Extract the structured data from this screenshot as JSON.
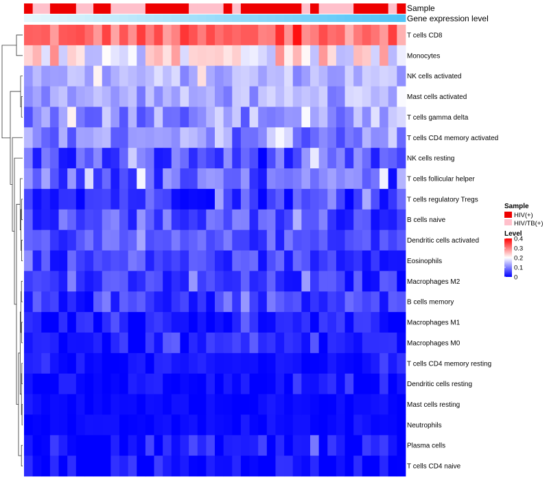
{
  "chart_data": {
    "type": "heatmap",
    "title": "",
    "rows": [
      "T cells CD8",
      "Monocytes",
      "NK cells activated",
      "Mast cells activated",
      "T cells gamma delta",
      "T cells CD4 memory activated",
      "NK cells resting",
      "T cells follicular helper",
      "T cells regulatory  Tregs",
      "B cells naive",
      "Dendritic cells activated",
      "Eosinophils",
      "Macrophages M2",
      "B cells memory",
      "Macrophages M1",
      "Macrophages M0",
      "T cells CD4 memory resting",
      "Dendritic cells resting",
      "Mast cells resting",
      "Neutrophils",
      "Plasma cells",
      "T cells CD4 naive"
    ],
    "n_samples": 44,
    "annotations": {
      "sample_label": "Sample",
      "gene_label": "Gene expression level",
      "sample_groups": [
        0,
        1,
        1,
        0,
        0,
        0,
        1,
        1,
        0,
        0,
        1,
        1,
        1,
        1,
        0,
        0,
        0,
        0,
        0,
        1,
        1,
        1,
        1,
        0,
        1,
        0,
        0,
        0,
        0,
        0,
        0,
        0,
        1,
        0,
        1,
        1,
        1,
        1,
        0,
        0,
        0,
        0,
        1,
        0
      ],
      "gene_gradient": [
        "#e6f7fd",
        "#4fc3f7"
      ]
    },
    "legend": {
      "sample": {
        "title": "Sample",
        "items": [
          {
            "label": "HIV(+)",
            "color": "#ee0000"
          },
          {
            "label": "HIV/TB(+)",
            "color": "#ffc0cb"
          }
        ]
      },
      "level": {
        "title": "Level",
        "ticks": [
          "0.4",
          "0.3",
          "0.2",
          "0.1",
          "0"
        ],
        "tick_values": [
          0.4,
          0.3,
          0.2,
          0.1,
          0
        ],
        "range": [
          0,
          0.4
        ],
        "colors": [
          "#0000ff",
          "#ffffff",
          "#ff0000"
        ]
      }
    },
    "row_profiles": [
      {
        "base": 0.31,
        "amp": 0.05
      },
      {
        "base": 0.21,
        "amp": 0.08
      },
      {
        "base": 0.14,
        "amp": 0.04
      },
      {
        "base": 0.13,
        "amp": 0.04
      },
      {
        "base": 0.12,
        "amp": 0.06
      },
      {
        "base": 0.1,
        "amp": 0.05
      },
      {
        "base": 0.06,
        "amp": 0.06
      },
      {
        "base": 0.07,
        "amp": 0.06
      },
      {
        "base": 0.05,
        "amp": 0.05
      },
      {
        "base": 0.06,
        "amp": 0.05
      },
      {
        "base": 0.06,
        "amp": 0.04
      },
      {
        "base": 0.05,
        "amp": 0.04
      },
      {
        "base": 0.04,
        "amp": 0.04
      },
      {
        "base": 0.04,
        "amp": 0.04
      },
      {
        "base": 0.02,
        "amp": 0.03
      },
      {
        "base": 0.02,
        "amp": 0.03
      },
      {
        "base": 0.01,
        "amp": 0.02
      },
      {
        "base": 0.01,
        "amp": 0.02
      },
      {
        "base": 0.005,
        "amp": 0.01
      },
      {
        "base": 0.005,
        "amp": 0.01
      },
      {
        "base": 0.02,
        "amp": 0.04
      },
      {
        "base": 0.01,
        "amp": 0.03
      }
    ],
    "dendrogram": [
      {
        "a": 0,
        "b": 1,
        "h": 0.3
      },
      {
        "a": 3,
        "b": 4,
        "h": 0.06
      },
      {
        "a": 2,
        "b": "m1",
        "h": 0.1
      },
      {
        "a": 8,
        "b": 9,
        "h": 0.05
      },
      {
        "a": 10,
        "b": 11,
        "h": 0.05
      },
      {
        "a": "m3",
        "b": "m4",
        "h": 0.08
      },
      {
        "a": 7,
        "b": "m5",
        "h": 0.12
      },
      {
        "a": 12,
        "b": 13,
        "h": 0.06
      },
      {
        "a": 14,
        "b": 15,
        "h": 0.05
      },
      {
        "a": "m7",
        "b": "m8",
        "h": 0.08
      },
      {
        "a": 16,
        "b": 17,
        "h": 0.04
      },
      {
        "a": 18,
        "b": 19,
        "h": 0.03
      },
      {
        "a": "m10",
        "b": "m11",
        "h": 0.06
      },
      {
        "a": "m9",
        "b": "m12",
        "h": 0.12
      },
      {
        "a": 20,
        "b": 21,
        "h": 0.06
      },
      {
        "a": "m13",
        "b": "m14",
        "h": 0.2
      },
      {
        "a": "m6",
        "b": "m15",
        "h": 0.3
      },
      {
        "a": 6,
        "b": "m16",
        "h": 0.4
      },
      {
        "a": 5,
        "b": "m17",
        "h": 0.5
      },
      {
        "a": "m2",
        "b": "m18",
        "h": 0.6
      },
      {
        "a": "m0",
        "b": "m19",
        "h": 1.0
      }
    ]
  }
}
